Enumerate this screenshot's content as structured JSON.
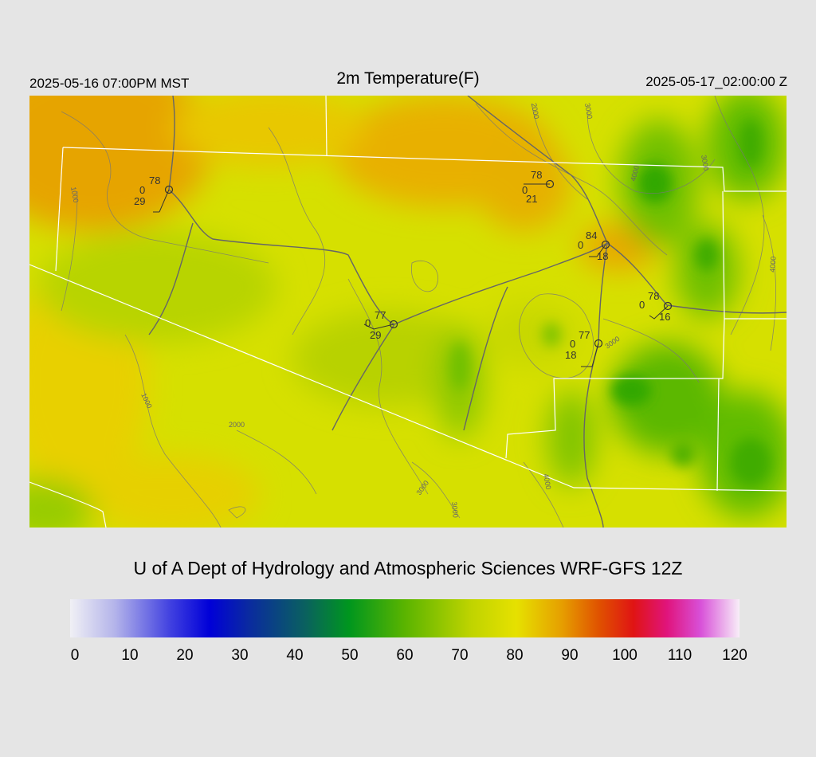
{
  "header": {
    "local_time": "2025-05-16 07:00PM MST",
    "title": "2m Temperature(F)",
    "utc_time": "2025-05-17_02:00:00 Z"
  },
  "credit": "U of A Dept of Hydrology and Atmospheric Sciences WRF-GFS 12Z",
  "colorbar": {
    "min": 0,
    "max": 120,
    "ticks": [
      "0",
      "10",
      "20",
      "30",
      "40",
      "50",
      "60",
      "70",
      "80",
      "90",
      "100",
      "110",
      "120"
    ],
    "stops": [
      {
        "v": 0,
        "color": "#f0f0f5"
      },
      {
        "v": 8,
        "color": "#b4b4ea"
      },
      {
        "v": 18,
        "color": "#4040e0"
      },
      {
        "v": 25,
        "color": "#0000d8"
      },
      {
        "v": 32,
        "color": "#0a2aa0"
      },
      {
        "v": 42,
        "color": "#0a6060"
      },
      {
        "v": 50,
        "color": "#00961e"
      },
      {
        "v": 60,
        "color": "#5ab400"
      },
      {
        "v": 72,
        "color": "#c0d400"
      },
      {
        "v": 80,
        "color": "#e6e100"
      },
      {
        "v": 88,
        "color": "#e6a000"
      },
      {
        "v": 95,
        "color": "#e05000"
      },
      {
        "v": 101,
        "color": "#e01414"
      },
      {
        "v": 107,
        "color": "#e0147c"
      },
      {
        "v": 113,
        "color": "#d850d8"
      },
      {
        "v": 120,
        "color": "#f8eef8"
      }
    ]
  },
  "stations": [
    {
      "id": "st1",
      "temp": "78",
      "gust": "0",
      "dew": "29"
    },
    {
      "id": "st2",
      "temp": "78",
      "gust": "0",
      "dew": "21"
    },
    {
      "id": "st3",
      "temp": "84",
      "gust": "0",
      "dew": "18"
    },
    {
      "id": "st4",
      "temp": "77",
      "gust": "0",
      "dew": "29"
    },
    {
      "id": "st5",
      "temp": "78",
      "gust": "0",
      "dew": "16"
    },
    {
      "id": "st6",
      "temp": "77",
      "gust": "0",
      "dew": "18"
    }
  ],
  "contour_labels": [
    "1000",
    "1000",
    "2000",
    "2000",
    "3000",
    "3000",
    "3000",
    "3000",
    "3000",
    "4000",
    "4000",
    "4000"
  ],
  "colors": {
    "background": "#e5e5e5",
    "boundary": "#ffffff",
    "road": "#666666",
    "contour": "#777777"
  }
}
